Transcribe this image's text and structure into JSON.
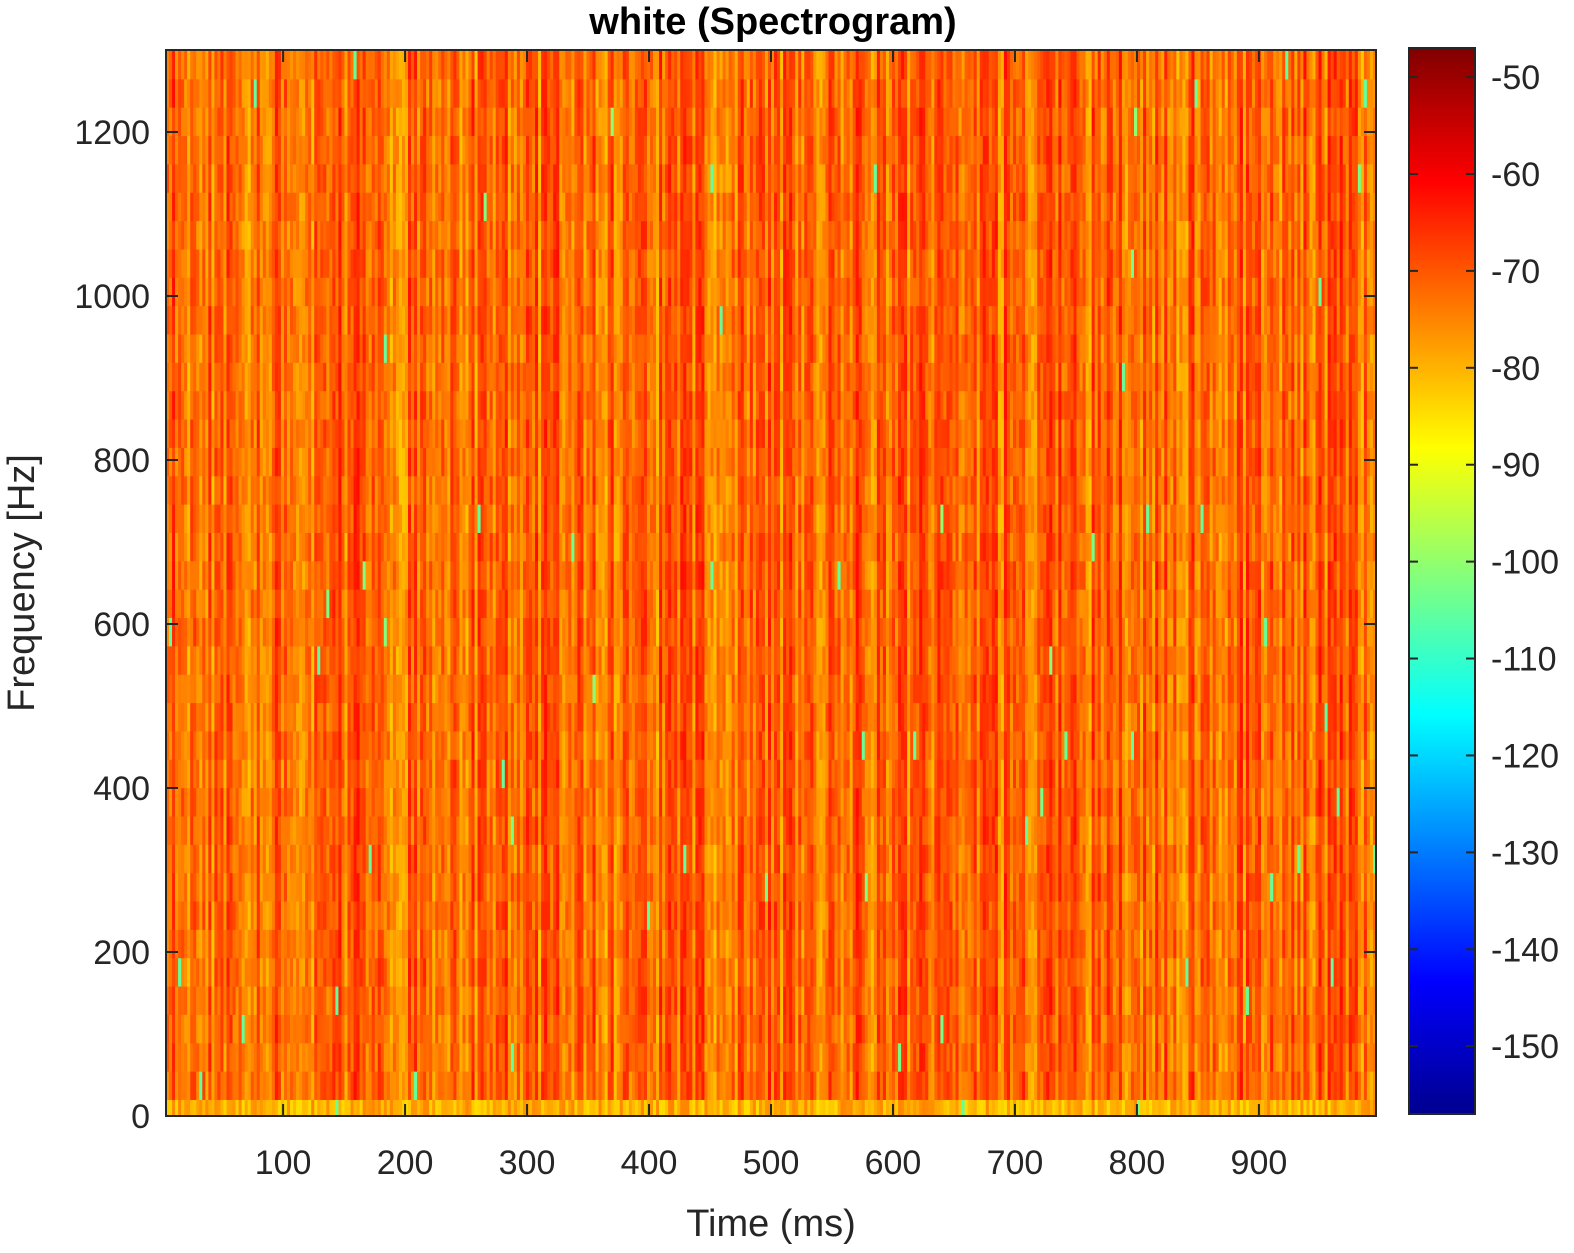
{
  "chart_data": {
    "type": "heatmap",
    "title": "white (Spectrogram)",
    "xlabel": "Time (ms)",
    "ylabel": "Frequency [Hz]",
    "xlim": [
      4,
      996
    ],
    "ylim": [
      0,
      1300
    ],
    "xticks": [
      100,
      200,
      300,
      400,
      500,
      600,
      700,
      800,
      900
    ],
    "yticks": [
      0,
      200,
      400,
      600,
      800,
      1000,
      1200
    ],
    "colormap": "jet",
    "colorbar": {
      "min": -157,
      "max": -47,
      "ticks": [
        -50,
        -60,
        -70,
        -80,
        -90,
        -100,
        -110,
        -120,
        -130,
        -140,
        -150
      ]
    },
    "z_description_level_db": [
      -90,
      -62
    ],
    "typical_level_db": -72,
    "lowest_band_level_db": -80,
    "grid": false
  }
}
